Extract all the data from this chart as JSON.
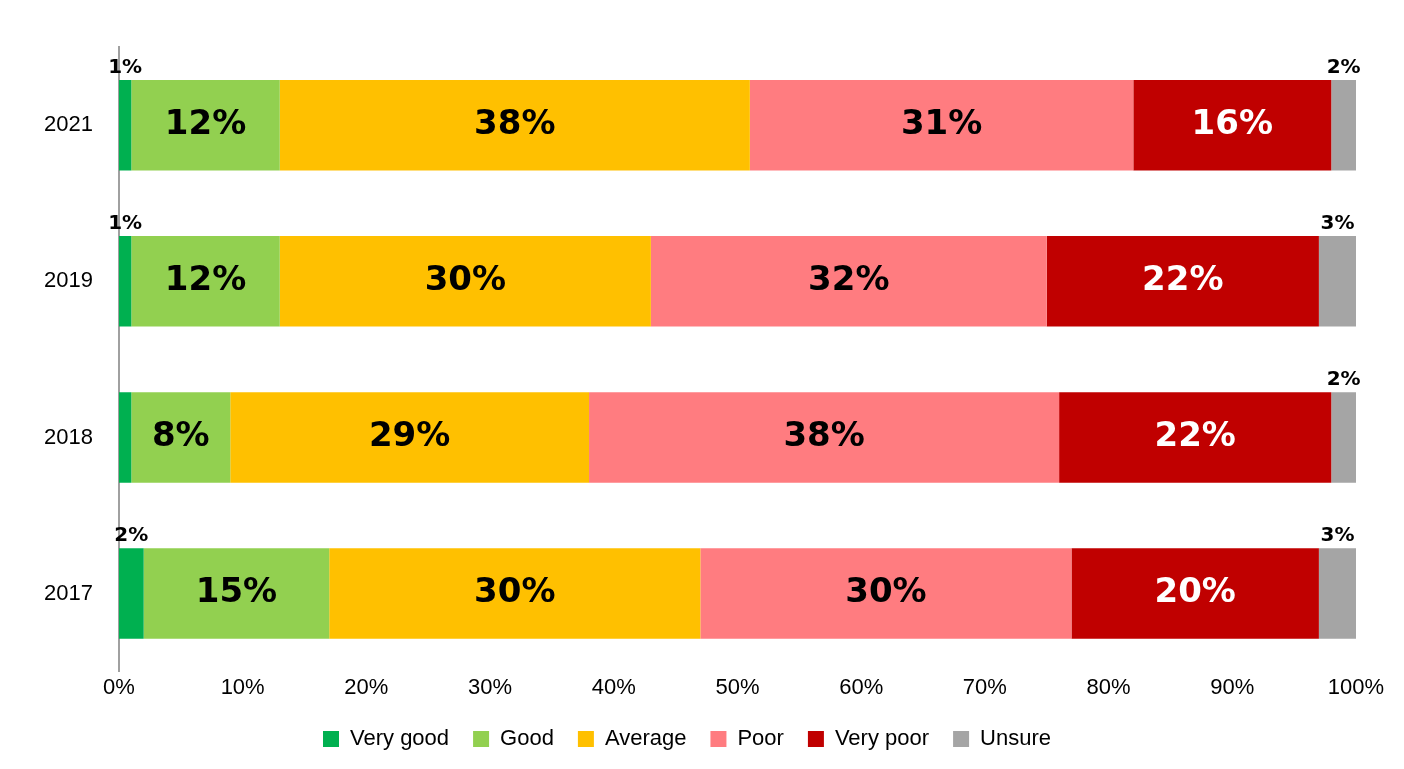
{
  "chart_data": {
    "type": "bar",
    "orientation": "horizontal",
    "stacked": true,
    "categories": [
      "2021",
      "2019",
      "2018",
      "2017"
    ],
    "series": [
      {
        "name": "Very good",
        "color": "#00b050",
        "values": [
          1,
          1,
          1,
          2
        ],
        "value_labels": [
          "1%",
          "1%",
          null,
          "2%"
        ]
      },
      {
        "name": "Good",
        "color": "#92d050",
        "values": [
          12,
          12,
          8,
          15
        ],
        "value_labels": [
          "12%",
          "12%",
          "8%",
          "15%"
        ]
      },
      {
        "name": "Average",
        "color": "#ffc000",
        "values": [
          38,
          30,
          29,
          30
        ],
        "value_labels": [
          "38%",
          "30%",
          "29%",
          "30%"
        ]
      },
      {
        "name": "Poor",
        "color": "#ff7c80",
        "values": [
          31,
          32,
          38,
          30
        ],
        "value_labels": [
          "31%",
          "32%",
          "38%",
          "30%"
        ]
      },
      {
        "name": "Very poor",
        "color": "#c00000",
        "values": [
          16,
          22,
          22,
          20
        ],
        "value_labels": [
          "16%",
          "22%",
          "22%",
          "20%"
        ]
      },
      {
        "name": "Unsure",
        "color": "#a5a5a5",
        "values": [
          2,
          3,
          2,
          3
        ],
        "value_labels": [
          "2%",
          "3%",
          "2%",
          "3%"
        ]
      }
    ],
    "xlim": [
      0,
      100
    ],
    "xticks": [
      {
        "value": 0,
        "label": "0%"
      },
      {
        "value": 10,
        "label": "10%"
      },
      {
        "value": 20,
        "label": "20%"
      },
      {
        "value": 30,
        "label": "30%"
      },
      {
        "value": 40,
        "label": "40%"
      },
      {
        "value": 50,
        "label": "50%"
      },
      {
        "value": 60,
        "label": "60%"
      },
      {
        "value": 70,
        "label": "70%"
      },
      {
        "value": 80,
        "label": "80%"
      },
      {
        "value": 90,
        "label": "90%"
      },
      {
        "value": 100,
        "label": "100%"
      }
    ],
    "grid": false,
    "legend": "bottom"
  }
}
